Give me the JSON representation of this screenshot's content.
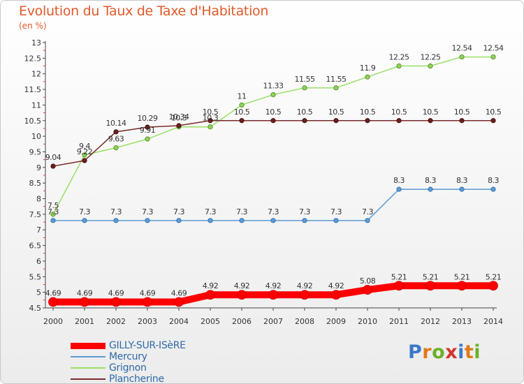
{
  "header": {
    "title": "Evolution du Taux de Taxe d'Habitation",
    "unit": "(en %)"
  },
  "logo": {
    "letters": [
      "P",
      "r",
      "o",
      "x",
      "i",
      "t",
      "i"
    ],
    "colors": [
      "#3a78c9",
      "#e07a1c",
      "#6bb12a",
      "#d3342b",
      "#3a78c9",
      "#e07a1c",
      "#6bb12a"
    ]
  },
  "chart_data": {
    "type": "line",
    "title": "Evolution du Taux de Taxe d'Habitation",
    "ylabel": "(en %)",
    "x": [
      "2000",
      "2001",
      "2002",
      "2003",
      "2004",
      "2005",
      "2006",
      "2007",
      "2008",
      "2009",
      "2010",
      "2011",
      "2012",
      "2013",
      "2014"
    ],
    "ylim": [
      4.5,
      13
    ],
    "ytick_labels": [
      "4.5",
      "5",
      "5.5",
      "6",
      "6.5",
      "7",
      "7.5",
      "8",
      "8.5",
      "9",
      "9.5",
      "10",
      "10.5",
      "11",
      "11.5",
      "12",
      "12.5",
      "13"
    ],
    "grid": false,
    "legend": "bottom-left",
    "series": [
      {
        "name": "GILLY-SUR-ISèRE",
        "color": "#ff0000",
        "values": [
          4.69,
          4.69,
          4.69,
          4.69,
          4.69,
          4.92,
          4.92,
          4.92,
          4.92,
          4.92,
          5.08,
          5.21,
          5.21,
          5.21,
          5.21
        ],
        "labels": [
          "4.69",
          "4.69",
          "4.69",
          "4.69",
          "4.69",
          "4.92",
          "4.92",
          "4.92",
          "4.92",
          "4.92",
          "5.08",
          "5.21",
          "5.21",
          "5.21",
          "5.21"
        ]
      },
      {
        "name": "Mercury",
        "color": "#5b9bd5",
        "values": [
          7.3,
          7.3,
          7.3,
          7.3,
          7.3,
          7.3,
          7.3,
          7.3,
          7.3,
          7.3,
          7.3,
          8.3,
          8.3,
          8.3,
          8.3
        ],
        "labels": [
          "7.3",
          "7.3",
          "7.3",
          "7.3",
          "7.3",
          "7.3",
          "7.3",
          "7.3",
          "7.3",
          "7.3",
          "7.3",
          "8.3",
          "8.3",
          "8.3",
          "8.3"
        ]
      },
      {
        "name": "Grignon",
        "color": "#99e066",
        "values": [
          7.5,
          9.4,
          9.63,
          9.91,
          10.3,
          10.3,
          11,
          11.33,
          11.55,
          11.55,
          11.9,
          12.25,
          12.25,
          12.54,
          12.54
        ],
        "labels": [
          "7.5",
          "9.4",
          "9.63",
          "9.91",
          "10.3",
          "10.3",
          "11",
          "11.33",
          "11.55",
          "11.55",
          "11.9",
          "12.25",
          "12.25",
          "12.54",
          "12.54"
        ]
      },
      {
        "name": "Plancherine",
        "color": "#7a2a2a",
        "values": [
          9.04,
          9.22,
          10.14,
          10.29,
          10.34,
          10.5,
          10.5,
          10.5,
          10.5,
          10.5,
          10.5,
          10.5,
          10.5,
          10.5,
          10.5
        ],
        "labels": [
          "9.04",
          "9.22",
          "10.14",
          "10.29",
          "10.34",
          "10.5",
          "10.5",
          "10.5",
          "10.5",
          "10.5",
          "10.5",
          "10.5",
          "10.5",
          "10.5",
          "10.5"
        ]
      }
    ]
  }
}
